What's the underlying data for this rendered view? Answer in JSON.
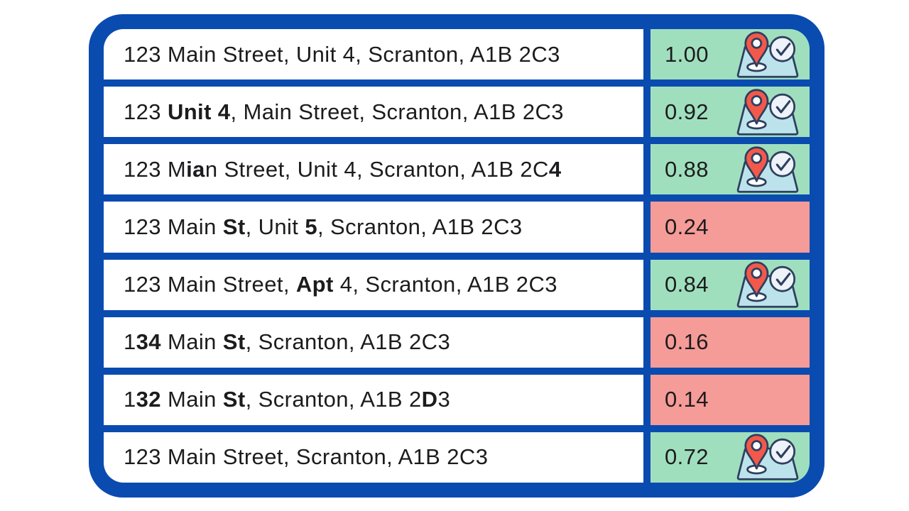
{
  "colors": {
    "frame_blue": "#0A4BB0",
    "row_white": "#FFFFFF",
    "match_green": "#A0DFBE",
    "mismatch_red": "#F59B98",
    "text_dark": "#1C1C1E",
    "icon_outline": "#2E3F5F",
    "icon_map_fill": "#BCE3EB",
    "icon_pin_red": "#F2594A",
    "icon_inner_white": "#FDFEFF",
    "icon_check_fill": "#EEF2F9"
  },
  "icons": {
    "match": "map-pin-verified-icon"
  },
  "table": {
    "rows": [
      {
        "address_parts": [
          {
            "text": "123 Main Street, Unit 4, Scranton, A1B 2C3",
            "bold": false
          }
        ],
        "score": "1.00",
        "match": true
      },
      {
        "address_parts": [
          {
            "text": "123 ",
            "bold": false
          },
          {
            "text": "Unit 4",
            "bold": true
          },
          {
            "text": ", Main Street, Scranton, A1B 2C3",
            "bold": false
          }
        ],
        "score": "0.92",
        "match": true
      },
      {
        "address_parts": [
          {
            "text": "123 M",
            "bold": false
          },
          {
            "text": "ia",
            "bold": true
          },
          {
            "text": "n Street, Unit 4, Scranton, A1B 2C",
            "bold": false
          },
          {
            "text": "4",
            "bold": true
          }
        ],
        "score": "0.88",
        "match": true
      },
      {
        "address_parts": [
          {
            "text": "123 Main ",
            "bold": false
          },
          {
            "text": "St",
            "bold": true
          },
          {
            "text": ", Unit ",
            "bold": false
          },
          {
            "text": "5",
            "bold": true
          },
          {
            "text": ", Scranton, A1B 2C3",
            "bold": false
          }
        ],
        "score": "0.24",
        "match": false
      },
      {
        "address_parts": [
          {
            "text": "123 Main Street, ",
            "bold": false
          },
          {
            "text": "Apt",
            "bold": true
          },
          {
            "text": " 4, Scranton, A1B 2C3",
            "bold": false
          }
        ],
        "score": "0.84",
        "match": true
      },
      {
        "address_parts": [
          {
            "text": "1",
            "bold": false
          },
          {
            "text": "34",
            "bold": true
          },
          {
            "text": " Main ",
            "bold": false
          },
          {
            "text": "St",
            "bold": true
          },
          {
            "text": ", Scranton, A1B 2C3",
            "bold": false
          }
        ],
        "score": "0.16",
        "match": false
      },
      {
        "address_parts": [
          {
            "text": "1",
            "bold": false
          },
          {
            "text": "32",
            "bold": true
          },
          {
            "text": " Main ",
            "bold": false
          },
          {
            "text": "St",
            "bold": true
          },
          {
            "text": ", Scranton, A1B 2",
            "bold": false
          },
          {
            "text": "D",
            "bold": true
          },
          {
            "text": "3",
            "bold": false
          }
        ],
        "score": "0.14",
        "match": false
      },
      {
        "address_parts": [
          {
            "text": "123 Main Street, Scranton, A1B 2C3",
            "bold": false
          }
        ],
        "score": "0.72",
        "match": true
      }
    ]
  },
  "chart_data": {
    "type": "table",
    "columns": [
      "address_variant",
      "similarity_score",
      "match_status"
    ],
    "rows": [
      {
        "address": "123 Main Street, Unit 4, Scranton, A1B 2C3",
        "score": 1.0,
        "match": true
      },
      {
        "address": "123 Unit 4, Main Street, Scranton, A1B 2C3",
        "score": 0.92,
        "match": true
      },
      {
        "address": "123 Mian Street, Unit 4, Scranton, A1B 2C4",
        "score": 0.88,
        "match": true
      },
      {
        "address": "123 Main St, Unit 5, Scranton, A1B 2C3",
        "score": 0.24,
        "match": false
      },
      {
        "address": "123 Main Street, Apt 4, Scranton, A1B 2C3",
        "score": 0.84,
        "match": true
      },
      {
        "address": "134 Main St, Scranton, A1B 2C3",
        "score": 0.16,
        "match": false
      },
      {
        "address": "132 Main St, Scranton, A1B 2D3",
        "score": 0.14,
        "match": false
      },
      {
        "address": "123 Main Street, Scranton, A1B 2C3",
        "score": 0.72,
        "match": true
      }
    ],
    "title": "",
    "notes_from_pixels_only": "green rows carry a map-pin-with-checkmark icon; red rows carry no icon"
  }
}
